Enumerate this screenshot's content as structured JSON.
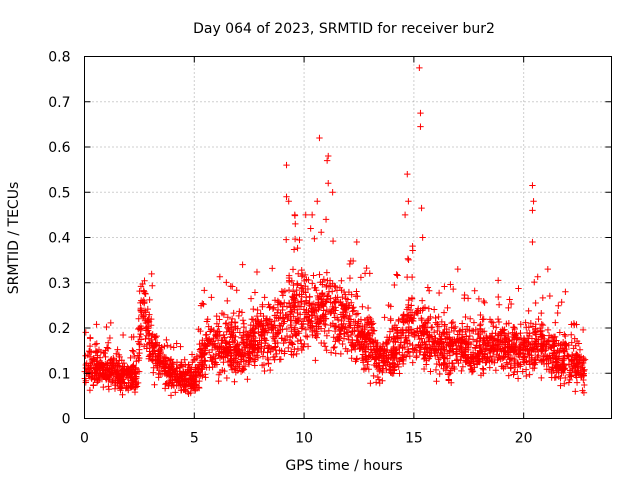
{
  "chart_data": {
    "type": "scatter",
    "title": "Day 064 of 2023, SRMTID for receiver bur2",
    "xlabel": "GPS time / hours",
    "ylabel": "SRMTID / TECUs",
    "xlim": [
      0,
      24
    ],
    "ylim": [
      0,
      0.8
    ],
    "xticks": [
      0,
      5,
      10,
      15,
      20
    ],
    "xtick_labels": [
      "0",
      "5",
      "10",
      "15",
      "20"
    ],
    "yticks": [
      0,
      0.1,
      0.2,
      0.3,
      0.4,
      0.5,
      0.6,
      0.7,
      0.8
    ],
    "ytick_labels": [
      "0",
      "0.1",
      "0.2",
      "0.3",
      "0.4",
      "0.5",
      "0.6",
      "0.7",
      "0.8"
    ],
    "grid": true,
    "marker": "plus",
    "color": "#ff0000",
    "x_data_range": [
      0,
      22.8
    ],
    "baseline": [
      [
        0.0,
        0.12
      ],
      [
        0.5,
        0.11
      ],
      [
        1.0,
        0.11
      ],
      [
        1.5,
        0.1
      ],
      [
        2.0,
        0.09
      ],
      [
        2.4,
        0.1
      ],
      [
        2.6,
        0.26
      ],
      [
        2.9,
        0.2
      ],
      [
        3.3,
        0.13
      ],
      [
        4.0,
        0.1
      ],
      [
        4.5,
        0.09
      ],
      [
        5.0,
        0.09
      ],
      [
        5.5,
        0.15
      ],
      [
        6.0,
        0.16
      ],
      [
        6.5,
        0.15
      ],
      [
        7.0,
        0.15
      ],
      [
        7.5,
        0.16
      ],
      [
        8.0,
        0.17
      ],
      [
        8.5,
        0.19
      ],
      [
        9.0,
        0.21
      ],
      [
        9.5,
        0.23
      ],
      [
        10.0,
        0.24
      ],
      [
        10.5,
        0.23
      ],
      [
        11.0,
        0.24
      ],
      [
        11.5,
        0.22
      ],
      [
        12.0,
        0.21
      ],
      [
        12.5,
        0.19
      ],
      [
        13.0,
        0.16
      ],
      [
        13.5,
        0.12
      ],
      [
        14.0,
        0.14
      ],
      [
        14.5,
        0.19
      ],
      [
        15.0,
        0.2
      ],
      [
        15.5,
        0.18
      ],
      [
        16.0,
        0.16
      ],
      [
        16.5,
        0.15
      ],
      [
        17.0,
        0.16
      ],
      [
        17.5,
        0.15
      ],
      [
        18.0,
        0.15
      ],
      [
        18.5,
        0.16
      ],
      [
        19.0,
        0.15
      ],
      [
        19.5,
        0.15
      ],
      [
        20.0,
        0.14
      ],
      [
        20.5,
        0.17
      ],
      [
        21.0,
        0.15
      ],
      [
        21.5,
        0.13
      ],
      [
        22.0,
        0.13
      ],
      [
        22.5,
        0.12
      ],
      [
        22.8,
        0.09
      ]
    ],
    "outliers": [
      [
        9.2,
        0.56
      ],
      [
        9.2,
        0.49
      ],
      [
        9.3,
        0.48
      ],
      [
        10.7,
        0.62
      ],
      [
        11.1,
        0.58
      ],
      [
        11.05,
        0.57
      ],
      [
        11.1,
        0.52
      ],
      [
        11.3,
        0.5
      ],
      [
        10.6,
        0.48
      ],
      [
        14.7,
        0.54
      ],
      [
        14.75,
        0.48
      ],
      [
        15.25,
        0.775
      ],
      [
        15.3,
        0.675
      ],
      [
        15.3,
        0.645
      ],
      [
        15.35,
        0.465
      ],
      [
        15.4,
        0.4
      ],
      [
        20.4,
        0.515
      ],
      [
        20.45,
        0.48
      ],
      [
        20.4,
        0.46
      ],
      [
        20.4,
        0.39
      ],
      [
        9.6,
        0.43
      ],
      [
        10.3,
        0.42
      ],
      [
        11.0,
        0.44
      ],
      [
        14.6,
        0.45
      ],
      [
        12.4,
        0.39
      ],
      [
        7.2,
        0.34
      ],
      [
        21.1,
        0.33
      ],
      [
        21.9,
        0.28
      ],
      [
        17.0,
        0.33
      ]
    ],
    "n_points": 3000
  }
}
